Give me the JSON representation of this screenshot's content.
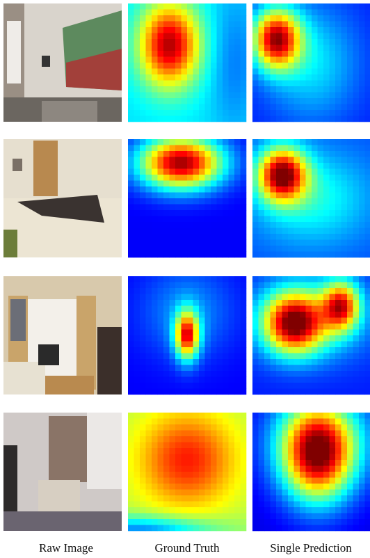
{
  "figure": {
    "columns": [
      "Raw Image",
      "Ground Truth",
      "Single Prediction"
    ]
  }
}
